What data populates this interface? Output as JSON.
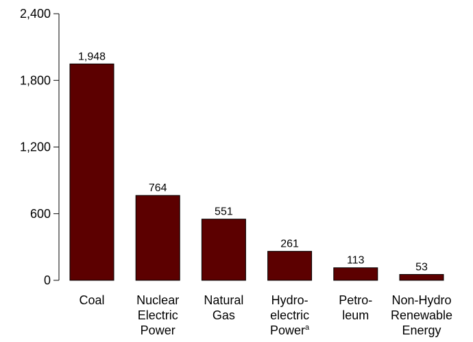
{
  "chart_data": {
    "type": "bar",
    "categories": [
      [
        "Coal"
      ],
      [
        "Nuclear",
        "Electric",
        "Power"
      ],
      [
        "Natural",
        "Gas"
      ],
      [
        "Hydro-",
        "electric",
        "Power"
      ],
      [
        "Petro-",
        "leum"
      ],
      [
        "Non-Hydro",
        "Renewable",
        "Energy"
      ]
    ],
    "category_footnotes": [
      "",
      "",
      "",
      "a",
      "",
      ""
    ],
    "values": [
      1948,
      764,
      551,
      261,
      113,
      53
    ],
    "value_labels": [
      "1,948",
      "764",
      "551",
      "261",
      "113",
      "53"
    ],
    "ylim": [
      0,
      2400
    ],
    "yticks": [
      0,
      600,
      1200,
      1800,
      2400
    ],
    "ytick_labels": [
      "0",
      "600",
      "1,200",
      "1,800",
      "2,400"
    ],
    "bar_color": "#5c0000",
    "title": "",
    "xlabel": "",
    "ylabel": "",
    "grid": false,
    "legend": "none"
  }
}
